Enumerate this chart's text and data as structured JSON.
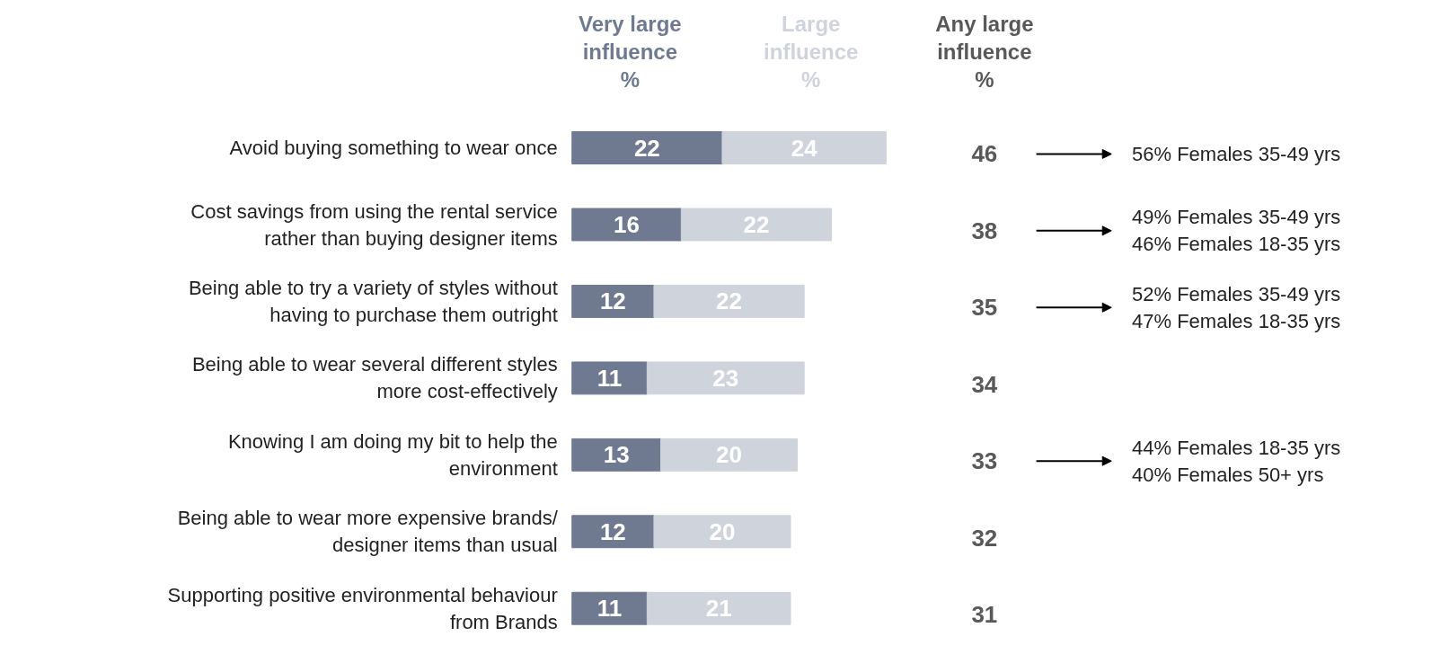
{
  "chart_data": {
    "type": "bar",
    "orientation": "horizontal",
    "stacked": true,
    "data_labels": true,
    "legend": "top",
    "categories": [
      "Avoid buying something to wear once",
      "Cost savings from using the rental service\nrather than buying designer items",
      "Being able to try a variety of styles without\nhaving to purchase them outright",
      "Being able to wear several different styles\nmore cost-effectively",
      "Knowing I am doing my bit to help the\nenvironment",
      "Being able to wear more expensive brands/\ndesigner items than usual",
      "Supporting positive environmental behaviour\nfrom Brands"
    ],
    "series": [
      {
        "name": "Very large\ninfluence\n%",
        "color": "#6f7a91",
        "values": [
          22,
          16,
          12,
          11,
          13,
          12,
          11
        ]
      },
      {
        "name": "Large\ninfluence\n%",
        "color": "#cfd3dc",
        "values": [
          24,
          22,
          22,
          23,
          20,
          20,
          21
        ]
      }
    ],
    "legend_title": "Any large\ninfluence\n%",
    "annotations": [
      "46",
      "38",
      "35",
      "34",
      "33",
      "32",
      "31",
      "56% Females 35-49 yrs",
      "49% Females 35-49 yrs\n46% Females 18-35 yrs",
      "52% Females 35-49 yrs\n47% Females 18-35 yrs",
      "44% Females 18-35 yrs\n40% Females  50+ yrs"
    ]
  }
}
